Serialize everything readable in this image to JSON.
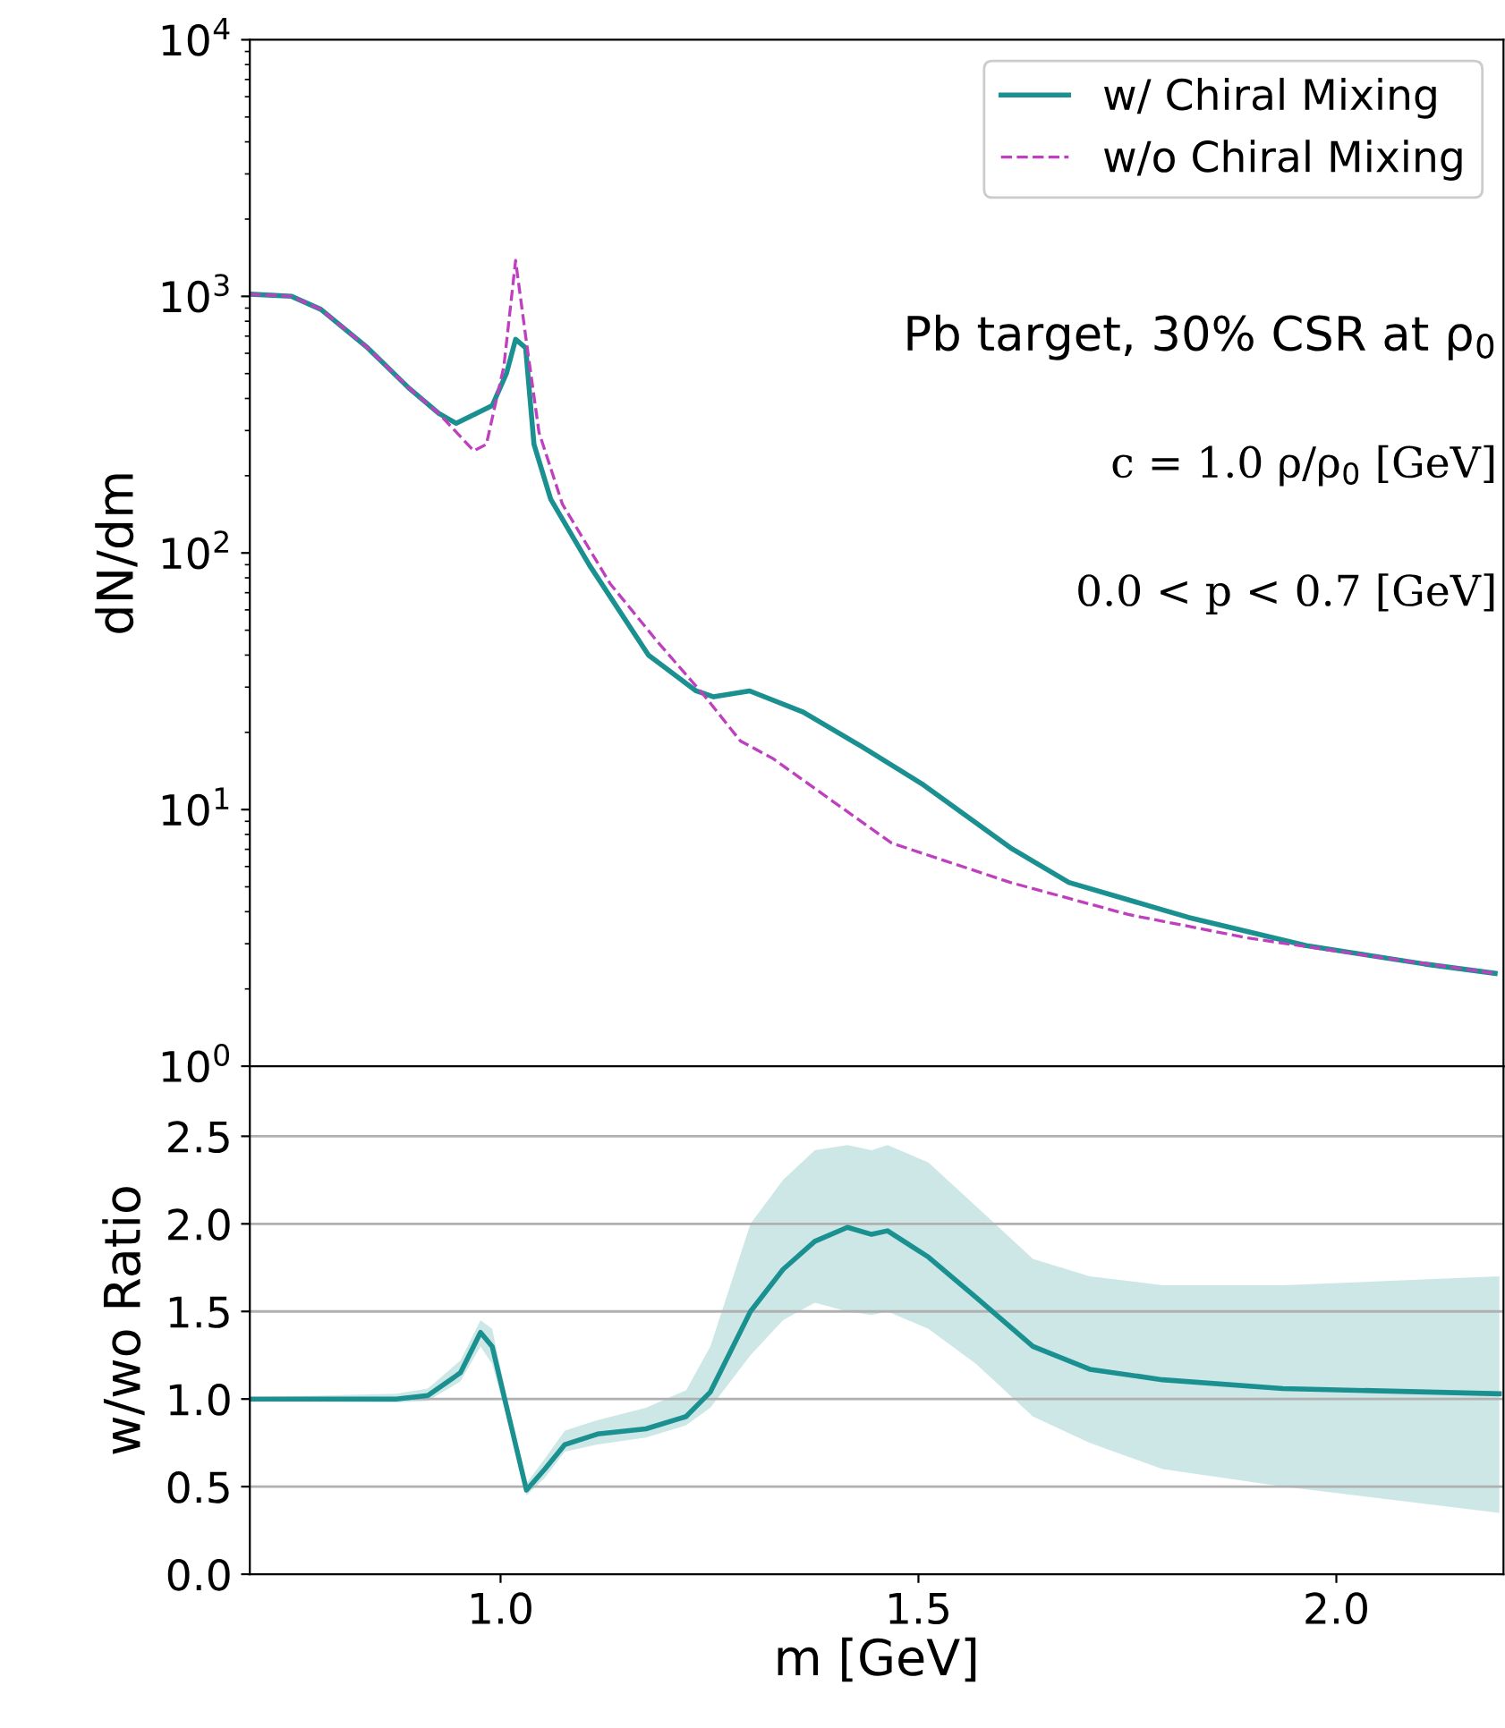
{
  "chart_data": [
    {
      "type": "line",
      "ylabel": "dN/dm",
      "log": "y",
      "xlim": [
        0.7,
        2.2
      ],
      "ylim": [
        1,
        10000
      ],
      "yticks": [
        {
          "value": 1,
          "label": "10$^{0}$"
        },
        {
          "value": 10,
          "label": "10$^{1}$"
        },
        {
          "value": 100,
          "label": "10$^{2}$"
        },
        {
          "value": 1000,
          "label": "10$^{3}$"
        },
        {
          "value": 10000,
          "label": "10$^{4}$"
        }
      ],
      "tick_labels": "y",
      "legend": "top right",
      "grid": false,
      "annotations": [
        "Pb target, 30% CSR at ρ$_{0}$",
        "c = 1.0 ρ/ρ$_{0}$ [GeV]",
        "0.0 < p < 0.7 [GeV]"
      ],
      "series": [
        {
          "name": "w/ Chiral Mixing",
          "color": "#1a9090",
          "line_style": "solid",
          "x": [
            0.7,
            0.75,
            0.785,
            0.841,
            0.89,
            0.926,
            0.947,
            0.99,
            1.007,
            1.018,
            1.03,
            1.04,
            1.06,
            1.106,
            1.177,
            1.234,
            1.255,
            1.298,
            1.362,
            1.432,
            1.504,
            1.61,
            1.68,
            1.823,
            1.964,
            2.106,
            2.19
          ],
          "values": [
            1020,
            1000,
            890,
            630,
            440,
            350,
            320,
            375,
            500,
            680,
            630,
            265,
            162,
            90,
            40,
            29,
            27.5,
            29,
            24,
            17.6,
            12.6,
            7.1,
            5.2,
            3.8,
            2.95,
            2.5,
            2.3
          ]
        },
        {
          "name": "w/o Chiral Mixing",
          "color": "#bf40bf",
          "line_style": "dashed",
          "x": [
            0.7,
            0.75,
            0.785,
            0.841,
            0.89,
            0.926,
            0.968,
            0.983,
            1.004,
            1.018,
            1.03,
            1.046,
            1.074,
            1.131,
            1.188,
            1.245,
            1.287,
            1.326,
            1.397,
            1.468,
            1.61,
            1.751,
            1.894,
            2.036,
            2.19
          ],
          "values": [
            1020,
            1000,
            890,
            630,
            440,
            350,
            250,
            265,
            535,
            1380,
            700,
            295,
            155,
            76,
            45,
            27.5,
            18.5,
            15.8,
            10.8,
            7.4,
            5.2,
            3.9,
            3.16,
            2.7,
            2.3
          ]
        }
      ]
    },
    {
      "type": "line",
      "xlabel": "m [GeV]",
      "ylabel": "w/wo Ratio",
      "xlim": [
        0.7,
        2.2
      ],
      "ylim": [
        0,
        2.9
      ],
      "xticks": [
        {
          "value": 1.0,
          "label": "1.0"
        },
        {
          "value": 1.5,
          "label": "1.5"
        },
        {
          "value": 2.0,
          "label": "2.0"
        }
      ],
      "yticks": [
        {
          "value": 0,
          "label": "0.0"
        },
        {
          "value": 0.5,
          "label": "0.5"
        },
        {
          "value": 1,
          "label": "1.0"
        },
        {
          "value": 1.5,
          "label": "1.5"
        },
        {
          "value": 2,
          "label": "2.0"
        },
        {
          "value": 2.5,
          "label": "2.5"
        }
      ],
      "grid": "y",
      "series": [
        {
          "color": "#1a9090",
          "line_style": "solid",
          "x": [
            0.7,
            0.875,
            0.913,
            0.952,
            0.976,
            0.99,
            1.01,
            1.031,
            1.053,
            1.077,
            1.116,
            1.174,
            1.222,
            1.251,
            1.299,
            1.338,
            1.376,
            1.415,
            1.444,
            1.463,
            1.512,
            1.569,
            1.637,
            1.705,
            1.792,
            1.936,
            2.195
          ],
          "values": [
            1.0,
            1.0,
            1.02,
            1.15,
            1.38,
            1.3,
            0.9,
            0.48,
            0.6,
            0.74,
            0.8,
            0.83,
            0.9,
            1.04,
            1.5,
            1.74,
            1.9,
            1.98,
            1.94,
            1.96,
            1.81,
            1.58,
            1.3,
            1.17,
            1.11,
            1.06,
            1.03
          ],
          "lower": [
            0.99,
            0.98,
            0.99,
            1.1,
            1.3,
            1.2,
            0.85,
            0.45,
            0.55,
            0.7,
            0.74,
            0.78,
            0.85,
            0.95,
            1.25,
            1.45,
            1.55,
            1.5,
            1.48,
            1.5,
            1.4,
            1.2,
            0.9,
            0.75,
            0.6,
            0.5,
            0.35
          ],
          "upper": [
            1.01,
            1.03,
            1.06,
            1.22,
            1.45,
            1.4,
            0.95,
            0.52,
            0.66,
            0.82,
            0.88,
            0.95,
            1.05,
            1.3,
            2.0,
            2.25,
            2.42,
            2.45,
            2.42,
            2.45,
            2.35,
            2.1,
            1.8,
            1.7,
            1.65,
            1.65,
            1.7
          ]
        }
      ]
    }
  ]
}
